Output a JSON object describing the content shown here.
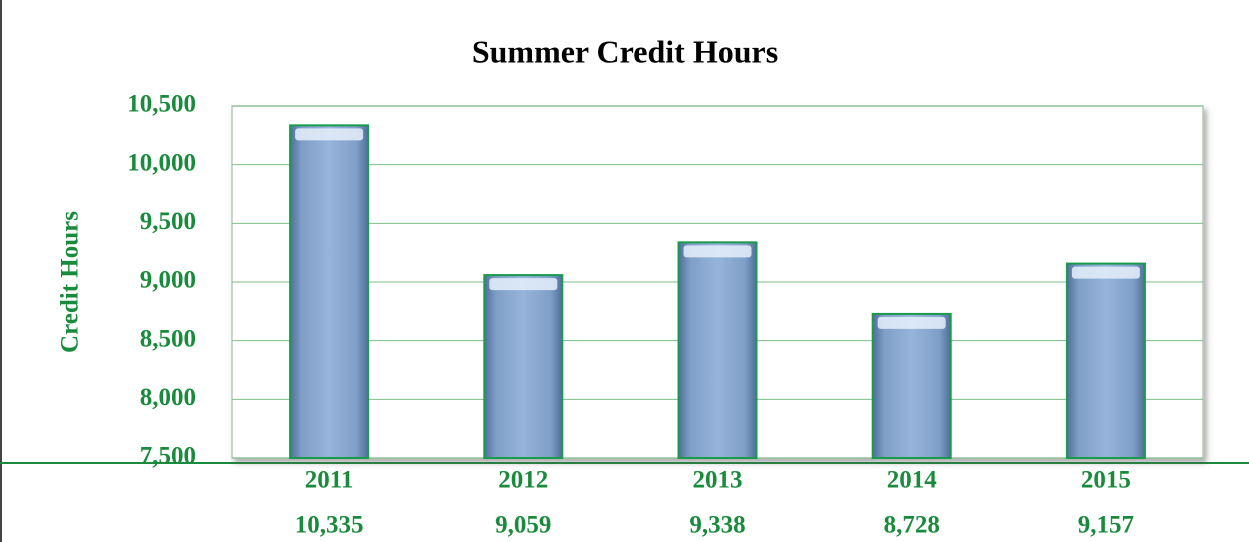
{
  "chart_data": {
    "type": "bar",
    "title": "Summer Credit Hours",
    "y_label": "Credit Hours",
    "categories": [
      "2011",
      "2012",
      "2013",
      "2014",
      "2015"
    ],
    "values": [
      10335,
      9059,
      9338,
      8728,
      9157
    ],
    "value_labels": [
      "10,335",
      "9,059",
      "9,338",
      "8,728",
      "9,157"
    ],
    "color": "#8aaad0",
    "ylim": [
      7500,
      10500
    ],
    "yticks": [
      {
        "value": 7500,
        "label": "7,500"
      },
      {
        "value": 8000,
        "label": "8,000"
      },
      {
        "value": 8500,
        "label": "8,500"
      },
      {
        "value": 9000,
        "label": "9,000"
      },
      {
        "value": 9500,
        "label": "9,500"
      },
      {
        "value": 10000,
        "label": "10,000"
      },
      {
        "value": 10500,
        "label": "10,500"
      }
    ],
    "grid": true
  }
}
